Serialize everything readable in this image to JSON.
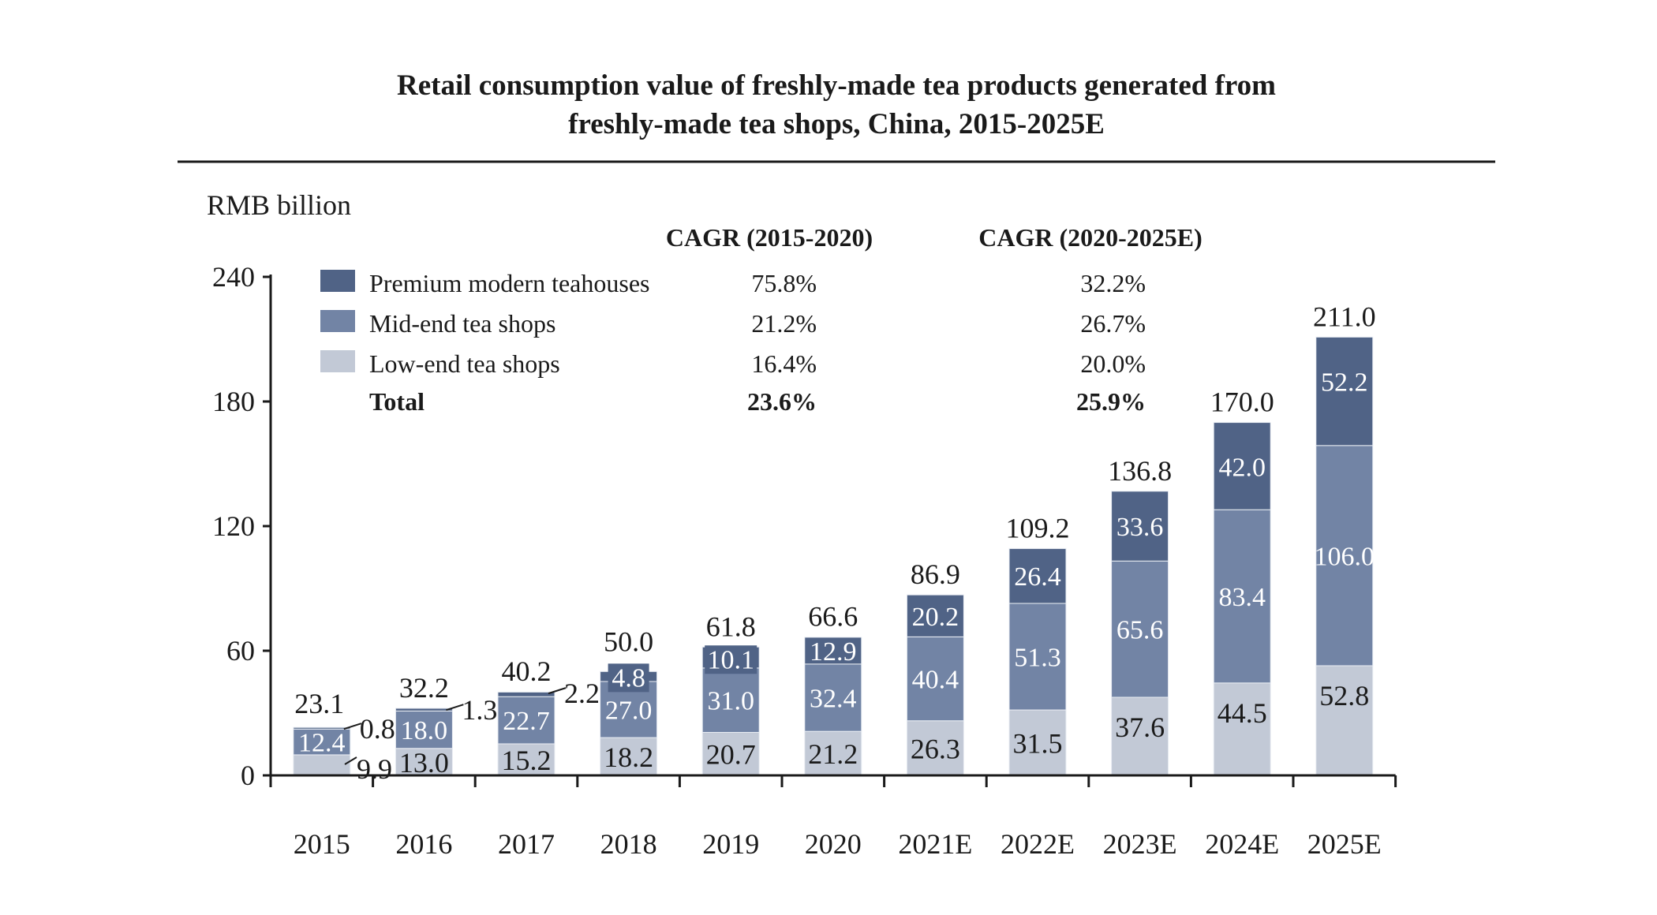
{
  "chart_data": {
    "type": "bar",
    "stacked": true,
    "title": "Retail consumption value of freshly-made tea products generated from freshly-made tea shops, China, 2015-2025E",
    "title_lines": [
      "Retail consumption value of freshly-made tea products generated from",
      "freshly-made tea shops, China, 2015-2025E"
    ],
    "ylabel": "RMB billion",
    "xlabel": "",
    "ylim": [
      0,
      240
    ],
    "yticks": [
      0,
      60,
      120,
      180,
      240
    ],
    "ytick_labels": [
      "0",
      "60",
      "120",
      "180",
      "240"
    ],
    "grid": false,
    "legend_position": "top-left",
    "categories": [
      "2015",
      "2016",
      "2017",
      "2018",
      "2019",
      "2020",
      "2021E",
      "2022E",
      "2023E",
      "2024E",
      "2025E"
    ],
    "series": [
      {
        "name": "Low-end tea shops",
        "color": "#c2c9d6",
        "values": [
          9.9,
          13.0,
          15.2,
          18.2,
          20.7,
          21.2,
          26.3,
          31.5,
          37.6,
          44.5,
          52.8
        ],
        "labels": [
          "9.9",
          "13.0",
          "15.2",
          "18.2",
          "20.7",
          "21.2",
          "26.3",
          "31.5",
          "37.6",
          "44.5",
          "52.8"
        ]
      },
      {
        "name": "Mid-end tea shops",
        "color": "#7284a5",
        "values": [
          12.4,
          18.0,
          22.7,
          27.0,
          31.0,
          32.4,
          40.4,
          51.3,
          65.6,
          83.4,
          106.0
        ],
        "labels": [
          "12.4",
          "18.0",
          "22.7",
          "27.0",
          "31.0",
          "32.4",
          "40.4",
          "51.3",
          "65.6",
          "83.4",
          "106.0"
        ]
      },
      {
        "name": "Premium modern teahouses",
        "color": "#506386",
        "values": [
          0.8,
          1.3,
          2.2,
          4.8,
          10.1,
          12.9,
          20.2,
          26.4,
          33.6,
          42.0,
          52.2
        ],
        "labels": [
          "0.8",
          "1.3",
          "2.2",
          "4.8",
          "10.1",
          "12.9",
          "20.2",
          "26.4",
          "33.6",
          "42.0",
          "52.2"
        ]
      }
    ],
    "totals": [
      23.1,
      32.2,
      40.2,
      50.0,
      61.8,
      66.6,
      86.9,
      109.2,
      136.8,
      170.0,
      211.0
    ],
    "total_labels": [
      "23.1",
      "32.2",
      "40.2",
      "50.0",
      "61.8",
      "66.6",
      "86.9",
      "109.2",
      "136.8",
      "170.0",
      "211.0"
    ],
    "cagr": {
      "headers": [
        "CAGR (2015-2020)",
        "CAGR (2020-2025E)"
      ],
      "rows": [
        {
          "name": "Premium modern teahouses",
          "period1": "75.8%",
          "period2": "32.2%"
        },
        {
          "name": "Mid-end tea shops",
          "period1": "21.2%",
          "period2": "26.7%"
        },
        {
          "name": "Low-end tea shops",
          "period1": "16.4%",
          "period2": "20.0%"
        },
        {
          "name": "Total",
          "period1": "23.6%",
          "period2": "25.9%",
          "bold": true
        }
      ]
    }
  }
}
